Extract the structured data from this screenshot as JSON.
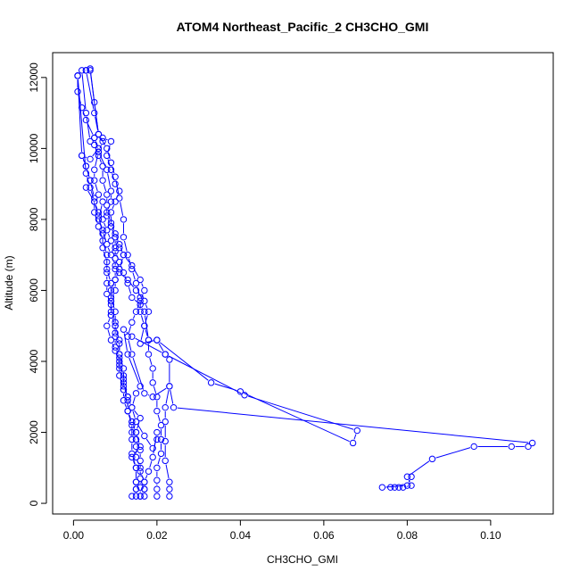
{
  "chart_data": {
    "type": "line",
    "title": "ATOM4 Northeast_Pacific_2 CH3CHO_GMI",
    "xlabel": "CH3CHO_GMI",
    "ylabel": "Altitude (m)",
    "xlim": [
      -0.005,
      0.115
    ],
    "ylim": [
      -300,
      12700
    ],
    "x_ticks": [
      0.0,
      0.02,
      0.04,
      0.06,
      0.08,
      0.1
    ],
    "x_tick_labels": [
      "0.00",
      "0.02",
      "0.04",
      "0.06",
      "0.08",
      "0.10"
    ],
    "y_ticks": [
      0,
      2000,
      4000,
      6000,
      8000,
      10000,
      12000
    ],
    "y_tick_labels": [
      "0",
      "2000",
      "4000",
      "6000",
      "8000",
      "10000",
      "12000"
    ],
    "grid": false,
    "color": "#0000ff",
    "marker": "open-circle",
    "series": [
      {
        "points": [
          [
            0.001,
            12050
          ],
          [
            0.001,
            11600
          ],
          [
            0.002,
            11150
          ],
          [
            0.003,
            10800
          ],
          [
            0.005,
            10300
          ],
          [
            0.006,
            10000
          ],
          [
            0.004,
            9700
          ],
          [
            0.002,
            9800
          ],
          [
            0.003,
            9500
          ],
          [
            0.004,
            9100
          ],
          [
            0.003,
            8900
          ],
          [
            0.005,
            8500
          ],
          [
            0.006,
            8200
          ],
          [
            0.007,
            8000
          ],
          [
            0.008,
            7700
          ],
          [
            0.009,
            7400
          ],
          [
            0.01,
            7100
          ],
          [
            0.011,
            6800
          ],
          [
            0.012,
            6500
          ],
          [
            0.013,
            6200
          ],
          [
            0.014,
            5800
          ],
          [
            0.016,
            5600
          ],
          [
            0.017,
            5400
          ],
          [
            0.018,
            4600
          ],
          [
            0.02,
            4600
          ],
          [
            0.022,
            4200
          ],
          [
            0.023,
            4050
          ],
          [
            0.023,
            3300
          ],
          [
            0.022,
            2700
          ],
          [
            0.022,
            2300
          ],
          [
            0.022,
            1750
          ],
          [
            0.022,
            1200
          ],
          [
            0.023,
            600
          ],
          [
            0.023,
            400
          ],
          [
            0.023,
            200
          ]
        ]
      },
      {
        "points": [
          [
            0.003,
            12200
          ],
          [
            0.004,
            12250
          ],
          [
            0.005,
            11300
          ],
          [
            0.006,
            10400
          ],
          [
            0.007,
            10200
          ],
          [
            0.006,
            9900
          ],
          [
            0.005,
            9400
          ],
          [
            0.005,
            9100
          ],
          [
            0.006,
            8700
          ],
          [
            0.007,
            8500
          ],
          [
            0.006,
            8000
          ],
          [
            0.007,
            7700
          ],
          [
            0.008,
            7300
          ],
          [
            0.009,
            7000
          ],
          [
            0.01,
            6700
          ],
          [
            0.011,
            6500
          ],
          [
            0.013,
            6300
          ],
          [
            0.015,
            6000
          ],
          [
            0.017,
            5700
          ],
          [
            0.018,
            5400
          ],
          [
            0.017,
            5000
          ],
          [
            0.016,
            4500
          ],
          [
            0.02,
            4600
          ],
          [
            0.033,
            3400
          ],
          [
            0.04,
            3150
          ],
          [
            0.067,
            1700
          ],
          [
            0.068,
            2050
          ],
          [
            0.041,
            3050
          ],
          [
            0.022,
            4200
          ],
          [
            0.014,
            4700
          ],
          [
            0.012,
            4900
          ],
          [
            0.013,
            4200
          ],
          [
            0.016,
            3300
          ],
          [
            0.015,
            3100
          ],
          [
            0.014,
            2700
          ],
          [
            0.016,
            2400
          ],
          [
            0.015,
            2000
          ],
          [
            0.016,
            1600
          ],
          [
            0.014,
            1300
          ],
          [
            0.015,
            1000
          ],
          [
            0.015,
            600
          ],
          [
            0.015,
            400
          ],
          [
            0.015,
            200
          ]
        ]
      },
      {
        "points": [
          [
            0.004,
            12200
          ],
          [
            0.006,
            10400
          ],
          [
            0.007,
            10300
          ],
          [
            0.009,
            10200
          ],
          [
            0.008,
            9800
          ],
          [
            0.009,
            9400
          ],
          [
            0.01,
            9000
          ],
          [
            0.011,
            8800
          ],
          [
            0.01,
            8500
          ],
          [
            0.009,
            8200
          ],
          [
            0.009,
            7800
          ],
          [
            0.01,
            7500
          ],
          [
            0.011,
            7200
          ],
          [
            0.012,
            7000
          ],
          [
            0.011,
            6600
          ],
          [
            0.01,
            6300
          ],
          [
            0.01,
            6000
          ],
          [
            0.009,
            5700
          ],
          [
            0.009,
            5300
          ],
          [
            0.008,
            5000
          ],
          [
            0.009,
            4600
          ],
          [
            0.01,
            4300
          ],
          [
            0.011,
            4000
          ],
          [
            0.011,
            3600
          ],
          [
            0.012,
            3200
          ],
          [
            0.012,
            2900
          ],
          [
            0.013,
            2600
          ],
          [
            0.014,
            2300
          ],
          [
            0.015,
            2000
          ],
          [
            0.015,
            1800
          ],
          [
            0.016,
            1500
          ],
          [
            0.016,
            1200
          ],
          [
            0.016,
            900
          ],
          [
            0.017,
            600
          ],
          [
            0.017,
            400
          ],
          [
            0.017,
            200
          ]
        ]
      },
      {
        "points": [
          [
            0.002,
            12200
          ],
          [
            0.003,
            11000
          ],
          [
            0.004,
            10200
          ],
          [
            0.005,
            10100
          ],
          [
            0.006,
            9800
          ],
          [
            0.007,
            9500
          ],
          [
            0.007,
            9100
          ],
          [
            0.008,
            8700
          ],
          [
            0.008,
            8400
          ],
          [
            0.008,
            8100
          ],
          [
            0.009,
            7800
          ],
          [
            0.01,
            7500
          ],
          [
            0.01,
            7200
          ],
          [
            0.01,
            6900
          ],
          [
            0.01,
            6600
          ],
          [
            0.01,
            6300
          ],
          [
            0.009,
            6000
          ],
          [
            0.009,
            5700
          ],
          [
            0.009,
            5400
          ],
          [
            0.01,
            5100
          ],
          [
            0.01,
            4800
          ],
          [
            0.011,
            4500
          ],
          [
            0.011,
            4200
          ],
          [
            0.011,
            3900
          ],
          [
            0.012,
            3600
          ],
          [
            0.012,
            3300
          ],
          [
            0.013,
            3000
          ],
          [
            0.014,
            2700
          ],
          [
            0.015,
            2300
          ],
          [
            0.017,
            1900
          ],
          [
            0.019,
            1550
          ],
          [
            0.02,
            1800
          ],
          [
            0.02,
            2000
          ],
          [
            0.019,
            1300
          ],
          [
            0.018,
            900
          ],
          [
            0.017,
            600
          ],
          [
            0.017,
            400
          ],
          [
            0.016,
            200
          ]
        ]
      },
      {
        "points": [
          [
            0.001,
            12050
          ],
          [
            0.003,
            9300
          ],
          [
            0.004,
            8900
          ],
          [
            0.005,
            8500
          ],
          [
            0.006,
            8100
          ],
          [
            0.007,
            7600
          ],
          [
            0.007,
            7200
          ],
          [
            0.008,
            6800
          ],
          [
            0.008,
            6500
          ],
          [
            0.008,
            6200
          ],
          [
            0.008,
            5900
          ],
          [
            0.009,
            5600
          ],
          [
            0.009,
            5300
          ],
          [
            0.01,
            5000
          ],
          [
            0.01,
            4700
          ],
          [
            0.01,
            4400
          ],
          [
            0.011,
            4100
          ],
          [
            0.011,
            3800
          ],
          [
            0.012,
            3500
          ],
          [
            0.012,
            3200
          ],
          [
            0.013,
            2900
          ],
          [
            0.013,
            2600
          ],
          [
            0.014,
            2300
          ],
          [
            0.014,
            2000
          ],
          [
            0.015,
            1800
          ],
          [
            0.015,
            1600
          ],
          [
            0.015,
            1300
          ],
          [
            0.016,
            1000
          ],
          [
            0.016,
            700
          ],
          [
            0.016,
            450
          ],
          [
            0.016,
            200
          ]
        ]
      },
      {
        "points": [
          [
            0.005,
            10300
          ],
          [
            0.006,
            9900
          ],
          [
            0.008,
            9400
          ],
          [
            0.009,
            8800
          ],
          [
            0.009,
            8500
          ],
          [
            0.008,
            8200
          ],
          [
            0.009,
            7900
          ],
          [
            0.01,
            7600
          ],
          [
            0.011,
            7300
          ],
          [
            0.012,
            7000
          ],
          [
            0.014,
            6700
          ],
          [
            0.016,
            6300
          ],
          [
            0.017,
            6000
          ],
          [
            0.016,
            5700
          ],
          [
            0.015,
            5400
          ],
          [
            0.014,
            5100
          ],
          [
            0.013,
            4700
          ],
          [
            0.014,
            4200
          ],
          [
            0.017,
            3100
          ],
          [
            0.019,
            3000
          ],
          [
            0.023,
            3300
          ],
          [
            0.024,
            2700
          ],
          [
            0.11,
            1700
          ],
          [
            0.109,
            1600
          ],
          [
            0.105,
            1600
          ],
          [
            0.096,
            1600
          ],
          [
            0.086,
            1250
          ],
          [
            0.08,
            750
          ],
          [
            0.081,
            500
          ],
          [
            0.079,
            450
          ],
          [
            0.078,
            450
          ],
          [
            0.077,
            450
          ],
          [
            0.076,
            450
          ],
          [
            0.074,
            450
          ],
          [
            0.08,
            500
          ],
          [
            0.081,
            750
          ]
        ]
      },
      {
        "points": [
          [
            0.001,
            12050
          ],
          [
            0.002,
            9800
          ],
          [
            0.003,
            9500
          ],
          [
            0.004,
            9100
          ],
          [
            0.005,
            8600
          ],
          [
            0.005,
            8200
          ],
          [
            0.006,
            7800
          ],
          [
            0.007,
            7400
          ],
          [
            0.008,
            7000
          ],
          [
            0.008,
            6600
          ],
          [
            0.009,
            6200
          ],
          [
            0.009,
            5800
          ],
          [
            0.01,
            5400
          ],
          [
            0.01,
            5000
          ],
          [
            0.011,
            4600
          ],
          [
            0.011,
            4200
          ],
          [
            0.012,
            3800
          ],
          [
            0.012,
            3400
          ],
          [
            0.013,
            3000
          ],
          [
            0.013,
            2600
          ],
          [
            0.014,
            2200
          ],
          [
            0.014,
            1800
          ],
          [
            0.014,
            1400
          ],
          [
            0.015,
            1000
          ],
          [
            0.015,
            600
          ],
          [
            0.015,
            400
          ],
          [
            0.014,
            200
          ]
        ]
      },
      {
        "points": [
          [
            0.003,
            12200
          ],
          [
            0.005,
            11000
          ],
          [
            0.006,
            10400
          ],
          [
            0.008,
            10000
          ],
          [
            0.009,
            9600
          ],
          [
            0.01,
            9200
          ],
          [
            0.011,
            8600
          ],
          [
            0.012,
            8000
          ],
          [
            0.012,
            7500
          ],
          [
            0.013,
            7000
          ],
          [
            0.014,
            6600
          ],
          [
            0.015,
            6200
          ],
          [
            0.016,
            5800
          ],
          [
            0.016,
            5400
          ],
          [
            0.017,
            5000
          ],
          [
            0.018,
            4600
          ],
          [
            0.018,
            4200
          ],
          [
            0.019,
            3800
          ],
          [
            0.019,
            3400
          ],
          [
            0.02,
            3000
          ],
          [
            0.02,
            2600
          ],
          [
            0.021,
            2200
          ],
          [
            0.021,
            1800
          ],
          [
            0.021,
            1400
          ],
          [
            0.02,
            1000
          ],
          [
            0.02,
            650
          ],
          [
            0.02,
            400
          ],
          [
            0.02,
            200
          ]
        ]
      }
    ]
  }
}
